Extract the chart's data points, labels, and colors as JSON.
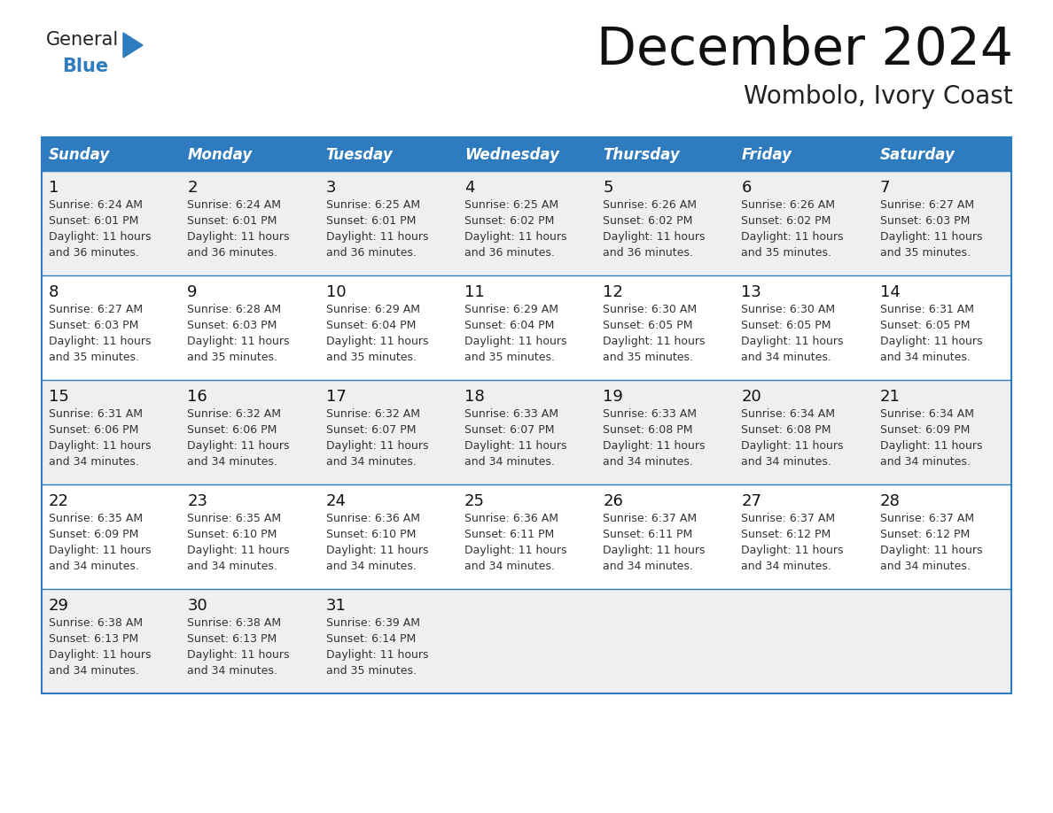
{
  "title": "December 2024",
  "subtitle": "Wombolo, Ivory Coast",
  "header_bg": "#2E7BBF",
  "header_text_color": "#FFFFFF",
  "row_bg_odd": "#EFEFEF",
  "row_bg_even": "#FFFFFF",
  "border_color": "#2E7BBF",
  "days_of_week": [
    "Sunday",
    "Monday",
    "Tuesday",
    "Wednesday",
    "Thursday",
    "Friday",
    "Saturday"
  ],
  "weeks": [
    [
      {
        "day": 1,
        "sunrise": "6:24 AM",
        "sunset": "6:01 PM",
        "daylight": "11 hours and 36 minutes."
      },
      {
        "day": 2,
        "sunrise": "6:24 AM",
        "sunset": "6:01 PM",
        "daylight": "11 hours and 36 minutes."
      },
      {
        "day": 3,
        "sunrise": "6:25 AM",
        "sunset": "6:01 PM",
        "daylight": "11 hours and 36 minutes."
      },
      {
        "day": 4,
        "sunrise": "6:25 AM",
        "sunset": "6:02 PM",
        "daylight": "11 hours and 36 minutes."
      },
      {
        "day": 5,
        "sunrise": "6:26 AM",
        "sunset": "6:02 PM",
        "daylight": "11 hours and 36 minutes."
      },
      {
        "day": 6,
        "sunrise": "6:26 AM",
        "sunset": "6:02 PM",
        "daylight": "11 hours and 35 minutes."
      },
      {
        "day": 7,
        "sunrise": "6:27 AM",
        "sunset": "6:03 PM",
        "daylight": "11 hours and 35 minutes."
      }
    ],
    [
      {
        "day": 8,
        "sunrise": "6:27 AM",
        "sunset": "6:03 PM",
        "daylight": "11 hours and 35 minutes."
      },
      {
        "day": 9,
        "sunrise": "6:28 AM",
        "sunset": "6:03 PM",
        "daylight": "11 hours and 35 minutes."
      },
      {
        "day": 10,
        "sunrise": "6:29 AM",
        "sunset": "6:04 PM",
        "daylight": "11 hours and 35 minutes."
      },
      {
        "day": 11,
        "sunrise": "6:29 AM",
        "sunset": "6:04 PM",
        "daylight": "11 hours and 35 minutes."
      },
      {
        "day": 12,
        "sunrise": "6:30 AM",
        "sunset": "6:05 PM",
        "daylight": "11 hours and 35 minutes."
      },
      {
        "day": 13,
        "sunrise": "6:30 AM",
        "sunset": "6:05 PM",
        "daylight": "11 hours and 34 minutes."
      },
      {
        "day": 14,
        "sunrise": "6:31 AM",
        "sunset": "6:05 PM",
        "daylight": "11 hours and 34 minutes."
      }
    ],
    [
      {
        "day": 15,
        "sunrise": "6:31 AM",
        "sunset": "6:06 PM",
        "daylight": "11 hours and 34 minutes."
      },
      {
        "day": 16,
        "sunrise": "6:32 AM",
        "sunset": "6:06 PM",
        "daylight": "11 hours and 34 minutes."
      },
      {
        "day": 17,
        "sunrise": "6:32 AM",
        "sunset": "6:07 PM",
        "daylight": "11 hours and 34 minutes."
      },
      {
        "day": 18,
        "sunrise": "6:33 AM",
        "sunset": "6:07 PM",
        "daylight": "11 hours and 34 minutes."
      },
      {
        "day": 19,
        "sunrise": "6:33 AM",
        "sunset": "6:08 PM",
        "daylight": "11 hours and 34 minutes."
      },
      {
        "day": 20,
        "sunrise": "6:34 AM",
        "sunset": "6:08 PM",
        "daylight": "11 hours and 34 minutes."
      },
      {
        "day": 21,
        "sunrise": "6:34 AM",
        "sunset": "6:09 PM",
        "daylight": "11 hours and 34 minutes."
      }
    ],
    [
      {
        "day": 22,
        "sunrise": "6:35 AM",
        "sunset": "6:09 PM",
        "daylight": "11 hours and 34 minutes."
      },
      {
        "day": 23,
        "sunrise": "6:35 AM",
        "sunset": "6:10 PM",
        "daylight": "11 hours and 34 minutes."
      },
      {
        "day": 24,
        "sunrise": "6:36 AM",
        "sunset": "6:10 PM",
        "daylight": "11 hours and 34 minutes."
      },
      {
        "day": 25,
        "sunrise": "6:36 AM",
        "sunset": "6:11 PM",
        "daylight": "11 hours and 34 minutes."
      },
      {
        "day": 26,
        "sunrise": "6:37 AM",
        "sunset": "6:11 PM",
        "daylight": "11 hours and 34 minutes."
      },
      {
        "day": 27,
        "sunrise": "6:37 AM",
        "sunset": "6:12 PM",
        "daylight": "11 hours and 34 minutes."
      },
      {
        "day": 28,
        "sunrise": "6:37 AM",
        "sunset": "6:12 PM",
        "daylight": "11 hours and 34 minutes."
      }
    ],
    [
      {
        "day": 29,
        "sunrise": "6:38 AM",
        "sunset": "6:13 PM",
        "daylight": "11 hours and 34 minutes."
      },
      {
        "day": 30,
        "sunrise": "6:38 AM",
        "sunset": "6:13 PM",
        "daylight": "11 hours and 34 minutes."
      },
      {
        "day": 31,
        "sunrise": "6:39 AM",
        "sunset": "6:14 PM",
        "daylight": "11 hours and 35 minutes."
      },
      null,
      null,
      null,
      null
    ]
  ],
  "logo_general_color": "#222222",
  "logo_blue_color": "#2E7BBF",
  "fig_width": 11.88,
  "fig_height": 9.18,
  "dpi": 100
}
